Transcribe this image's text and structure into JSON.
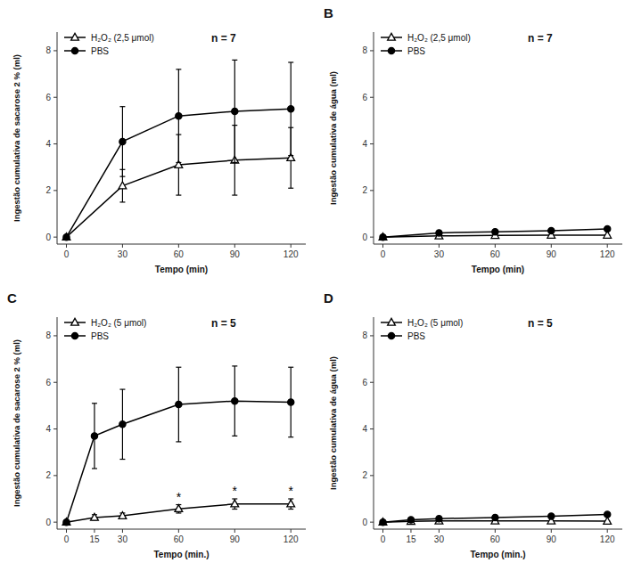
{
  "chart_data": [
    {
      "type": "line",
      "xlabel": "Tempo (min)",
      "ylabel": "Ingestão cumulativa de sacarose 2 % (ml)",
      "xlim": [
        -5,
        128
      ],
      "ylim": [
        -0.3,
        8.8
      ],
      "xticks": [
        0,
        30,
        60,
        90,
        120
      ],
      "yticks": [
        0,
        2,
        4,
        6,
        8
      ],
      "grid": false,
      "legend": "upper left",
      "x": [
        0,
        30,
        60,
        90,
        120
      ],
      "series": [
        {
          "name": "H₂O₂ (2,5 μmol)",
          "color": "#000000",
          "marker": "open-triangle",
          "line_style": "solid",
          "values": [
            0.0,
            2.2,
            3.1,
            3.3,
            3.4
          ],
          "errors": [
            0.0,
            0.7,
            1.3,
            1.5,
            1.3
          ]
        },
        {
          "name": "PBS",
          "color": "#000000",
          "marker": "circle",
          "line_style": "solid",
          "values": [
            0.0,
            4.1,
            5.2,
            5.4,
            5.5
          ],
          "errors": [
            0.0,
            1.5,
            2.0,
            2.2,
            2.0
          ]
        }
      ],
      "annotations": [
        {
          "text": "n = 7"
        }
      ]
    },
    {
      "type": "line",
      "title": "B",
      "xlabel": "Tempo (min)",
      "ylabel": "Ingestão cumulativa de água (ml)",
      "xlim": [
        -5,
        128
      ],
      "ylim": [
        -0.3,
        8.8
      ],
      "xticks": [
        0,
        30,
        60,
        90,
        120
      ],
      "yticks": [
        0,
        2,
        4,
        6,
        8
      ],
      "grid": false,
      "legend": "upper left",
      "x": [
        0,
        30,
        60,
        90,
        120
      ],
      "series": [
        {
          "name": "H₂O₂ (2,5 μmol)",
          "color": "#000000",
          "marker": "open-triangle",
          "line_style": "solid",
          "values": [
            0.0,
            0.05,
            0.07,
            0.08,
            0.08
          ],
          "errors": [
            0.0,
            0.02,
            0.02,
            0.02,
            0.02
          ]
        },
        {
          "name": "PBS",
          "color": "#000000",
          "marker": "circle",
          "line_style": "solid",
          "values": [
            0.0,
            0.18,
            0.23,
            0.27,
            0.35
          ],
          "errors": [
            0.0,
            0.06,
            0.06,
            0.06,
            0.08
          ]
        }
      ],
      "annotations": [
        {
          "text": "n = 7"
        }
      ]
    },
    {
      "type": "line",
      "title": "C",
      "xlabel": "Tempo (min.)",
      "ylabel": "Ingestão cumulativa de sacarose 2 % (ml)",
      "xlim": [
        -5,
        128
      ],
      "ylim": [
        -0.3,
        8.8
      ],
      "xticks": [
        0,
        15,
        30,
        60,
        90,
        120
      ],
      "yticks": [
        0,
        2,
        4,
        6,
        8
      ],
      "grid": false,
      "legend": "upper left",
      "x": [
        0,
        15,
        30,
        60,
        90,
        120
      ],
      "series": [
        {
          "name": "H₂O₂ (5 μmol)",
          "color": "#000000",
          "marker": "open-triangle",
          "line_style": "solid",
          "values": [
            0.0,
            0.2,
            0.27,
            0.57,
            0.78,
            0.78
          ],
          "errors": [
            0.0,
            0.12,
            0.12,
            0.18,
            0.22,
            0.22
          ]
        },
        {
          "name": "PBS",
          "color": "#000000",
          "marker": "circle",
          "line_style": "solid",
          "values": [
            0.0,
            3.7,
            4.2,
            5.05,
            5.2,
            5.15
          ],
          "errors": [
            0.0,
            1.4,
            1.5,
            1.6,
            1.5,
            1.5
          ]
        }
      ],
      "annotations": [
        {
          "text": "n = 5"
        },
        {
          "text": "*",
          "x": 60
        },
        {
          "text": "*",
          "x": 90
        },
        {
          "text": "*",
          "x": 120
        }
      ]
    },
    {
      "type": "line",
      "title": "D",
      "xlabel": "Tempo (min.)",
      "ylabel": "Ingestão cumulativa de água (ml)",
      "xlim": [
        -5,
        128
      ],
      "ylim": [
        -0.3,
        8.8
      ],
      "xticks": [
        0,
        15,
        30,
        60,
        90,
        120
      ],
      "yticks": [
        0,
        2,
        4,
        6,
        8
      ],
      "grid": false,
      "legend": "upper left",
      "x": [
        0,
        15,
        30,
        60,
        90,
        120
      ],
      "series": [
        {
          "name": "H₂O₂ (5 μmol)",
          "color": "#000000",
          "marker": "open-triangle",
          "line_style": "solid",
          "values": [
            0.0,
            0.03,
            0.05,
            0.05,
            0.05,
            0.04
          ],
          "errors": [
            0.0,
            0.01,
            0.01,
            0.01,
            0.01,
            0.01
          ]
        },
        {
          "name": "PBS",
          "color": "#000000",
          "marker": "circle",
          "line_style": "solid",
          "values": [
            0.0,
            0.1,
            0.15,
            0.2,
            0.25,
            0.33
          ],
          "errors": [
            0.0,
            0.04,
            0.04,
            0.05,
            0.05,
            0.06
          ]
        }
      ],
      "annotations": [
        {
          "text": "n = 5"
        }
      ]
    }
  ]
}
